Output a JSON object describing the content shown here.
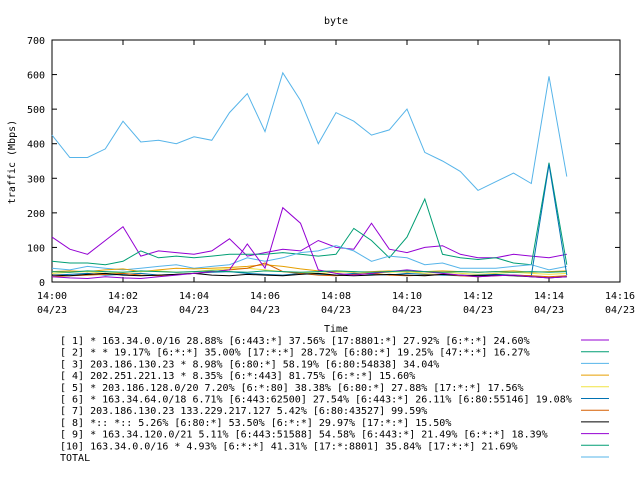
{
  "chart_data": {
    "type": "line",
    "title": "byte",
    "xlabel": "Time",
    "ylabel": "traffic (Mbps)",
    "ylim": [
      0,
      700
    ],
    "y_ticks": [
      0,
      100,
      200,
      300,
      400,
      500,
      600,
      700
    ],
    "x_ticks": [
      {
        "time": "14:00",
        "date": "04/23"
      },
      {
        "time": "14:02",
        "date": "04/23"
      },
      {
        "time": "14:04",
        "date": "04/23"
      },
      {
        "time": "14:06",
        "date": "04/23"
      },
      {
        "time": "14:08",
        "date": "04/23"
      },
      {
        "time": "14:10",
        "date": "04/23"
      },
      {
        "time": "14:12",
        "date": "04/23"
      },
      {
        "time": "14:14",
        "date": "04/23"
      },
      {
        "time": "14:16",
        "date": "04/23"
      }
    ],
    "x_range": [
      "14:00",
      "14:16"
    ],
    "x": [
      "14:00",
      "14:00:30",
      "14:01",
      "14:01:30",
      "14:02",
      "14:02:30",
      "14:03",
      "14:03:30",
      "14:04",
      "14:04:30",
      "14:05",
      "14:05:30",
      "14:06",
      "14:06:30",
      "14:07",
      "14:07:30",
      "14:08",
      "14:08:30",
      "14:09",
      "14:09:30",
      "14:10",
      "14:10:30",
      "14:11",
      "14:11:30",
      "14:12",
      "14:12:30",
      "14:13",
      "14:13:30",
      "14:14",
      "14:14:30"
    ],
    "grid": false,
    "legend_position": "bottom",
    "series": [
      {
        "name": "[ 1] * 163.34.0.0/16 28.88%  [6:443:*] 37.56% [17:8801:*] 27.92% [6:*:*] 24.60%",
        "color": "#9400d3",
        "values": [
          130,
          95,
          80,
          120,
          160,
          75,
          90,
          85,
          80,
          90,
          125,
          75,
          85,
          95,
          90,
          120,
          100,
          95,
          170,
          95,
          85,
          100,
          105,
          80,
          70,
          70,
          80,
          75,
          70,
          80
        ]
      },
      {
        "name": "[ 2] * * 19.17%  [6:*:*] 35.00% [17:*:*] 28.72% [6:80:*] 19.25% [47:*:*] 16.27%",
        "color": "#009e73",
        "values": [
          60,
          55,
          55,
          50,
          60,
          90,
          70,
          75,
          70,
          75,
          80,
          80,
          80,
          85,
          80,
          75,
          80,
          155,
          120,
          70,
          130,
          240,
          80,
          70,
          65,
          70,
          55,
          50,
          345,
          50
        ]
      },
      {
        "name": "[ 3] 203.186.130.23 * 8.98%  [6:80:*] 58.19% [6:80:54838] 34.04%",
        "color": "#56b4e9",
        "values": [
          40,
          35,
          45,
          40,
          35,
          40,
          45,
          50,
          40,
          45,
          50,
          70,
          60,
          70,
          85,
          90,
          105,
          90,
          60,
          75,
          70,
          50,
          55,
          40,
          40,
          40,
          45,
          50,
          35,
          45
        ]
      },
      {
        "name": "[ 4] 202.251.221.13 * 8.35%  [6:*:443] 81.75% [6:*:*] 15.60%",
        "color": "#e69f00",
        "values": [
          30,
          32,
          30,
          35,
          38,
          30,
          35,
          40,
          38,
          40,
          42,
          45,
          50,
          45,
          38,
          32,
          30,
          28,
          30,
          32,
          28,
          30,
          32,
          30,
          28,
          30,
          32,
          28,
          30,
          32
        ]
      },
      {
        "name": "[ 5] * 203.186.128.0/20 7.20%  [6:*:80] 38.38% [6:80:*] 27.88% [17:*:*] 17.56%",
        "color": "#f0e442",
        "values": [
          25,
          28,
          30,
          25,
          28,
          30,
          32,
          28,
          30,
          35,
          38,
          40,
          35,
          30,
          28,
          25,
          28,
          30,
          25,
          28,
          30,
          25,
          28,
          25,
          22,
          25,
          28,
          25,
          22,
          25
        ]
      },
      {
        "name": "[ 6] * 163.34.64.0/18 6.71%  [6:443:62500] 27.54% [6:443:*] 26.11% [6:80:55146] 19.08%",
        "color": "#0072b2",
        "values": [
          20,
          22,
          25,
          20,
          22,
          25,
          20,
          22,
          25,
          28,
          30,
          25,
          22,
          20,
          25,
          22,
          20,
          25,
          22,
          20,
          25,
          22,
          20,
          18,
          20,
          22,
          20,
          18,
          340,
          20
        ]
      },
      {
        "name": "[ 7] 203.186.130.23 133.229.217.127 5.42%  [6:80:43527] 99.59%",
        "color": "#d55e00",
        "values": [
          15,
          18,
          20,
          22,
          25,
          20,
          18,
          22,
          25,
          30,
          35,
          40,
          55,
          30,
          25,
          20,
          18,
          22,
          25,
          20,
          18,
          20,
          22,
          18,
          15,
          18,
          20,
          18,
          15,
          18
        ]
      },
      {
        "name": "[ 8] *:: *:: 5.26%  [6:80:*] 53.50% [6:*:*] 29.97% [17:*:*] 15.50%",
        "color": "#000000",
        "values": [
          20,
          18,
          22,
          25,
          20,
          18,
          20,
          22,
          25,
          20,
          18,
          22,
          20,
          18,
          22,
          25,
          20,
          18,
          20,
          22,
          20,
          18,
          22,
          20,
          18,
          20,
          18,
          15,
          12,
          15
        ]
      },
      {
        "name": "[ 9] * 163.34.120.0/21 5.11%  [6:443:51588] 54.58% [6:443:*] 21.49% [6:*:*] 18.39%",
        "color": "#9400d3",
        "values": [
          15,
          12,
          10,
          15,
          12,
          10,
          15,
          20,
          25,
          30,
          35,
          110,
          40,
          215,
          170,
          35,
          25,
          20,
          25,
          30,
          35,
          30,
          25,
          20,
          15,
          18,
          20,
          15,
          12,
          15
        ]
      },
      {
        "name": "[10] 163.34.0.0/16 * 4.93%  [6:*:*] 41.31% [17:*:8801] 35.84% [17:*:*] 21.69%",
        "color": "#009e73",
        "values": [
          30,
          28,
          32,
          30,
          28,
          32,
          30,
          28,
          30,
          32,
          30,
          28,
          32,
          30,
          28,
          30,
          32,
          30,
          28,
          30,
          32,
          30,
          28,
          30,
          28,
          30,
          28,
          30,
          28,
          30
        ]
      },
      {
        "name": "TOTAL",
        "color": "#56b4e9",
        "values": [
          425,
          360,
          360,
          385,
          465,
          405,
          410,
          400,
          420,
          410,
          490,
          545,
          435,
          605,
          525,
          400,
          490,
          465,
          425,
          440,
          500,
          375,
          350,
          320,
          265,
          290,
          315,
          285,
          595,
          305
        ]
      }
    ]
  }
}
